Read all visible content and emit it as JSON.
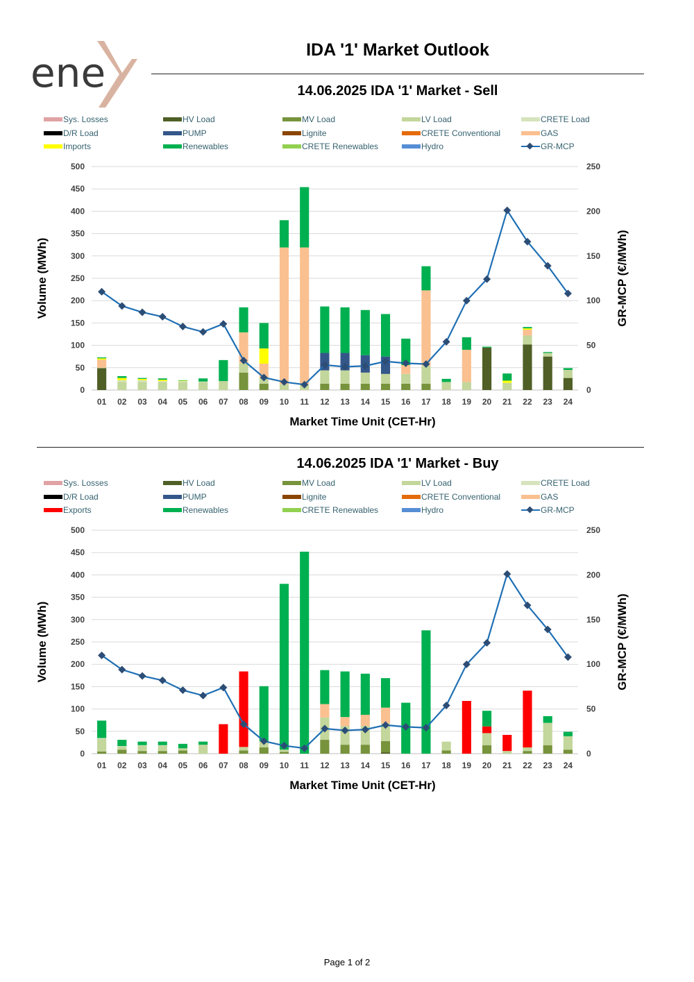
{
  "brand": {
    "logo_text": "ene",
    "logo_accent_color": "#d9b3a1",
    "logo_text_color": "#3a3a3a"
  },
  "page_title": "IDA '1' Market Outlook",
  "footer": "Page 1 of 2",
  "colors": {
    "Sys. Losses": "#e0a2a4",
    "HV Load": "#4f5f26",
    "MV Load": "#77933c",
    "LV Load": "#c3d69b",
    "CRETE Load": "#d6e3bc",
    "D/R Load": "#000000",
    "PUMP": "#34578a",
    "Lignite": "#8a4500",
    "CRETE Conventional": "#e46c0a",
    "GAS": "#fac090",
    "Imports": "#ffff00",
    "Exports": "#ff0000",
    "Renewables": "#00b050",
    "CRETE Renewables": "#92d050",
    "Hydro": "#558ed5",
    "GR-MCP": "#1f6fb4",
    "GR-MCP-marker": "#2c4d75"
  },
  "chart_data": [
    {
      "type": "bar",
      "title": "14.06.2025  IDA '1' Market - Sell",
      "xlabel": "Market Time Unit (CET-Hr)",
      "ylabel": "Volume (MWh)",
      "y2label": "GR-MCP (€/MWh)",
      "ylim": [
        0,
        500
      ],
      "y2lim": [
        0,
        250
      ],
      "yticks": [
        0,
        50,
        100,
        150,
        200,
        250,
        300,
        350,
        400,
        450,
        500
      ],
      "y2ticks": [
        0,
        50,
        100,
        150,
        200,
        250
      ],
      "grid": true,
      "legend_position": "top",
      "legend": [
        "Sys. Losses",
        "HV Load",
        "MV Load",
        "LV Load",
        "CRETE Load",
        "D/R Load",
        "PUMP",
        "Lignite",
        "CRETE Conventional",
        "GAS",
        "Imports",
        "Renewables",
        "CRETE Renewables",
        "Hydro",
        "GR-MCP"
      ],
      "categories": [
        "01",
        "02",
        "03",
        "04",
        "05",
        "06",
        "07",
        "08",
        "09",
        "10",
        "11",
        "12",
        "13",
        "14",
        "15",
        "16",
        "17",
        "18",
        "19",
        "20",
        "21",
        "22",
        "23",
        "24"
      ],
      "series": [
        {
          "name": "HV Load",
          "values": [
            49,
            0,
            0,
            0,
            0,
            0,
            0,
            0,
            0,
            0,
            0,
            0,
            0,
            0,
            0,
            0,
            0,
            0,
            0,
            95,
            0,
            102,
            75,
            27
          ]
        },
        {
          "name": "MV Load",
          "values": [
            0,
            0,
            0,
            0,
            0,
            0,
            0,
            39,
            14,
            0,
            0,
            14,
            14,
            14,
            14,
            14,
            14,
            0,
            0,
            0,
            0,
            0,
            0,
            0
          ]
        },
        {
          "name": "LV Load",
          "values": [
            0,
            18,
            18,
            18,
            18,
            18,
            20,
            21,
            14,
            13,
            13,
            30,
            30,
            25,
            22,
            22,
            40,
            18,
            18,
            0,
            16,
            20,
            8,
            18
          ]
        },
        {
          "name": "CRETE Load",
          "values": [
            1,
            4,
            4,
            2,
            2,
            1,
            0,
            0,
            0,
            0,
            0,
            0,
            0,
            0,
            0,
            0,
            0,
            0,
            0,
            0,
            0,
            0,
            0,
            0
          ]
        },
        {
          "name": "PUMP",
          "values": [
            0,
            0,
            0,
            0,
            0,
            0,
            0,
            0,
            0,
            0,
            0,
            39,
            39,
            39,
            39,
            0,
            0,
            0,
            0,
            0,
            0,
            0,
            0,
            0
          ]
        },
        {
          "name": "GAS",
          "values": [
            18,
            0,
            0,
            0,
            0,
            0,
            0,
            69,
            31,
            306,
            306,
            0,
            0,
            0,
            0,
            20,
            169,
            0,
            72,
            0,
            0,
            13,
            0,
            0
          ]
        },
        {
          "name": "Imports",
          "values": [
            3,
            5,
            3,
            3,
            1,
            0,
            0,
            0,
            34,
            0,
            0,
            0,
            0,
            0,
            0,
            0,
            0,
            0,
            0,
            0,
            5,
            3,
            0,
            0
          ]
        },
        {
          "name": "Renewables",
          "values": [
            2,
            4,
            2,
            3,
            1,
            7,
            47,
            56,
            57,
            61,
            135,
            104,
            102,
            101,
            95,
            59,
            54,
            7,
            28,
            2,
            16,
            3,
            2,
            4
          ]
        },
        {
          "name": "CRETE Renewables",
          "values": [
            0,
            0,
            0,
            0,
            0,
            0,
            0,
            0,
            0,
            0,
            0,
            0,
            0,
            0,
            0,
            0,
            0,
            0,
            0,
            0,
            0,
            0,
            0,
            0
          ]
        }
      ],
      "line": {
        "name": "GR-MCP",
        "axis": "right",
        "values": [
          110,
          94,
          87,
          82,
          71,
          65,
          74,
          33,
          14,
          9,
          6,
          28,
          26,
          27,
          32,
          30,
          29,
          54,
          100,
          124,
          201,
          166,
          139,
          108
        ]
      }
    },
    {
      "type": "bar",
      "title": "14.06.2025  IDA '1' Market - Buy",
      "xlabel": "Market Time Unit (CET-Hr)",
      "ylabel": "Volume (MWh)",
      "y2label": "GR-MCP (€/MWh)",
      "ylim": [
        0,
        500
      ],
      "y2lim": [
        0,
        250
      ],
      "yticks": [
        0,
        50,
        100,
        150,
        200,
        250,
        300,
        350,
        400,
        450,
        500
      ],
      "y2ticks": [
        0,
        50,
        100,
        150,
        200,
        250
      ],
      "grid": true,
      "legend_position": "top",
      "legend": [
        "Sys. Losses",
        "HV Load",
        "MV Load",
        "LV Load",
        "CRETE Load",
        "D/R Load",
        "PUMP",
        "Lignite",
        "CRETE Conventional",
        "GAS",
        "Exports",
        "Renewables",
        "CRETE Renewables",
        "Hydro",
        "GR-MCP"
      ],
      "categories": [
        "01",
        "02",
        "03",
        "04",
        "05",
        "06",
        "07",
        "08",
        "09",
        "10",
        "11",
        "12",
        "13",
        "14",
        "15",
        "16",
        "17",
        "18",
        "19",
        "20",
        "21",
        "22",
        "23",
        "24"
      ],
      "series": [
        {
          "name": "HV Load",
          "values": [
            0,
            0,
            0,
            0,
            0,
            0,
            0,
            0,
            0,
            0,
            0,
            0,
            0,
            0,
            3,
            0,
            0,
            0,
            0,
            0,
            0,
            0,
            0,
            0
          ]
        },
        {
          "name": "MV Load",
          "values": [
            5,
            9,
            6,
            6,
            7,
            0,
            0,
            7,
            14,
            4,
            0,
            31,
            20,
            20,
            25,
            0,
            0,
            7,
            0,
            19,
            0,
            6,
            19,
            9
          ]
        },
        {
          "name": "LV Load",
          "values": [
            28,
            7,
            12,
            12,
            5,
            20,
            0,
            8,
            14,
            5,
            0,
            50,
            42,
            42,
            40,
            0,
            0,
            20,
            0,
            27,
            6,
            8,
            50,
            30
          ]
        },
        {
          "name": "CRETE Load",
          "values": [
            2,
            1,
            1,
            1,
            0,
            0,
            0,
            0,
            0,
            0,
            0,
            0,
            0,
            0,
            0,
            0,
            0,
            0,
            0,
            0,
            0,
            0,
            0,
            0
          ]
        },
        {
          "name": "GAS",
          "values": [
            0,
            0,
            0,
            0,
            0,
            0,
            0,
            0,
            0,
            0,
            0,
            30,
            20,
            25,
            35,
            0,
            0,
            0,
            0,
            0,
            0,
            0,
            0,
            0
          ]
        },
        {
          "name": "Exports",
          "values": [
            0,
            0,
            0,
            0,
            0,
            0,
            66,
            169,
            0,
            0,
            0,
            0,
            0,
            0,
            0,
            0,
            0,
            0,
            118,
            15,
            36,
            127,
            0,
            0
          ]
        },
        {
          "name": "Renewables",
          "values": [
            39,
            14,
            8,
            8,
            10,
            7,
            0,
            0,
            123,
            371,
            452,
            76,
            102,
            92,
            66,
            114,
            276,
            0,
            0,
            35,
            0,
            0,
            15,
            10
          ]
        },
        {
          "name": "CRETE Renewables",
          "values": [
            0,
            0,
            0,
            0,
            0,
            0,
            0,
            0,
            0,
            0,
            0,
            0,
            0,
            0,
            0,
            0,
            0,
            0,
            0,
            0,
            0,
            0,
            0,
            0
          ]
        }
      ],
      "line": {
        "name": "GR-MCP",
        "axis": "right",
        "values": [
          110,
          94,
          87,
          82,
          71,
          65,
          74,
          33,
          14,
          9,
          6,
          28,
          26,
          27,
          32,
          30,
          29,
          54,
          100,
          124,
          201,
          166,
          139,
          108
        ]
      }
    }
  ]
}
